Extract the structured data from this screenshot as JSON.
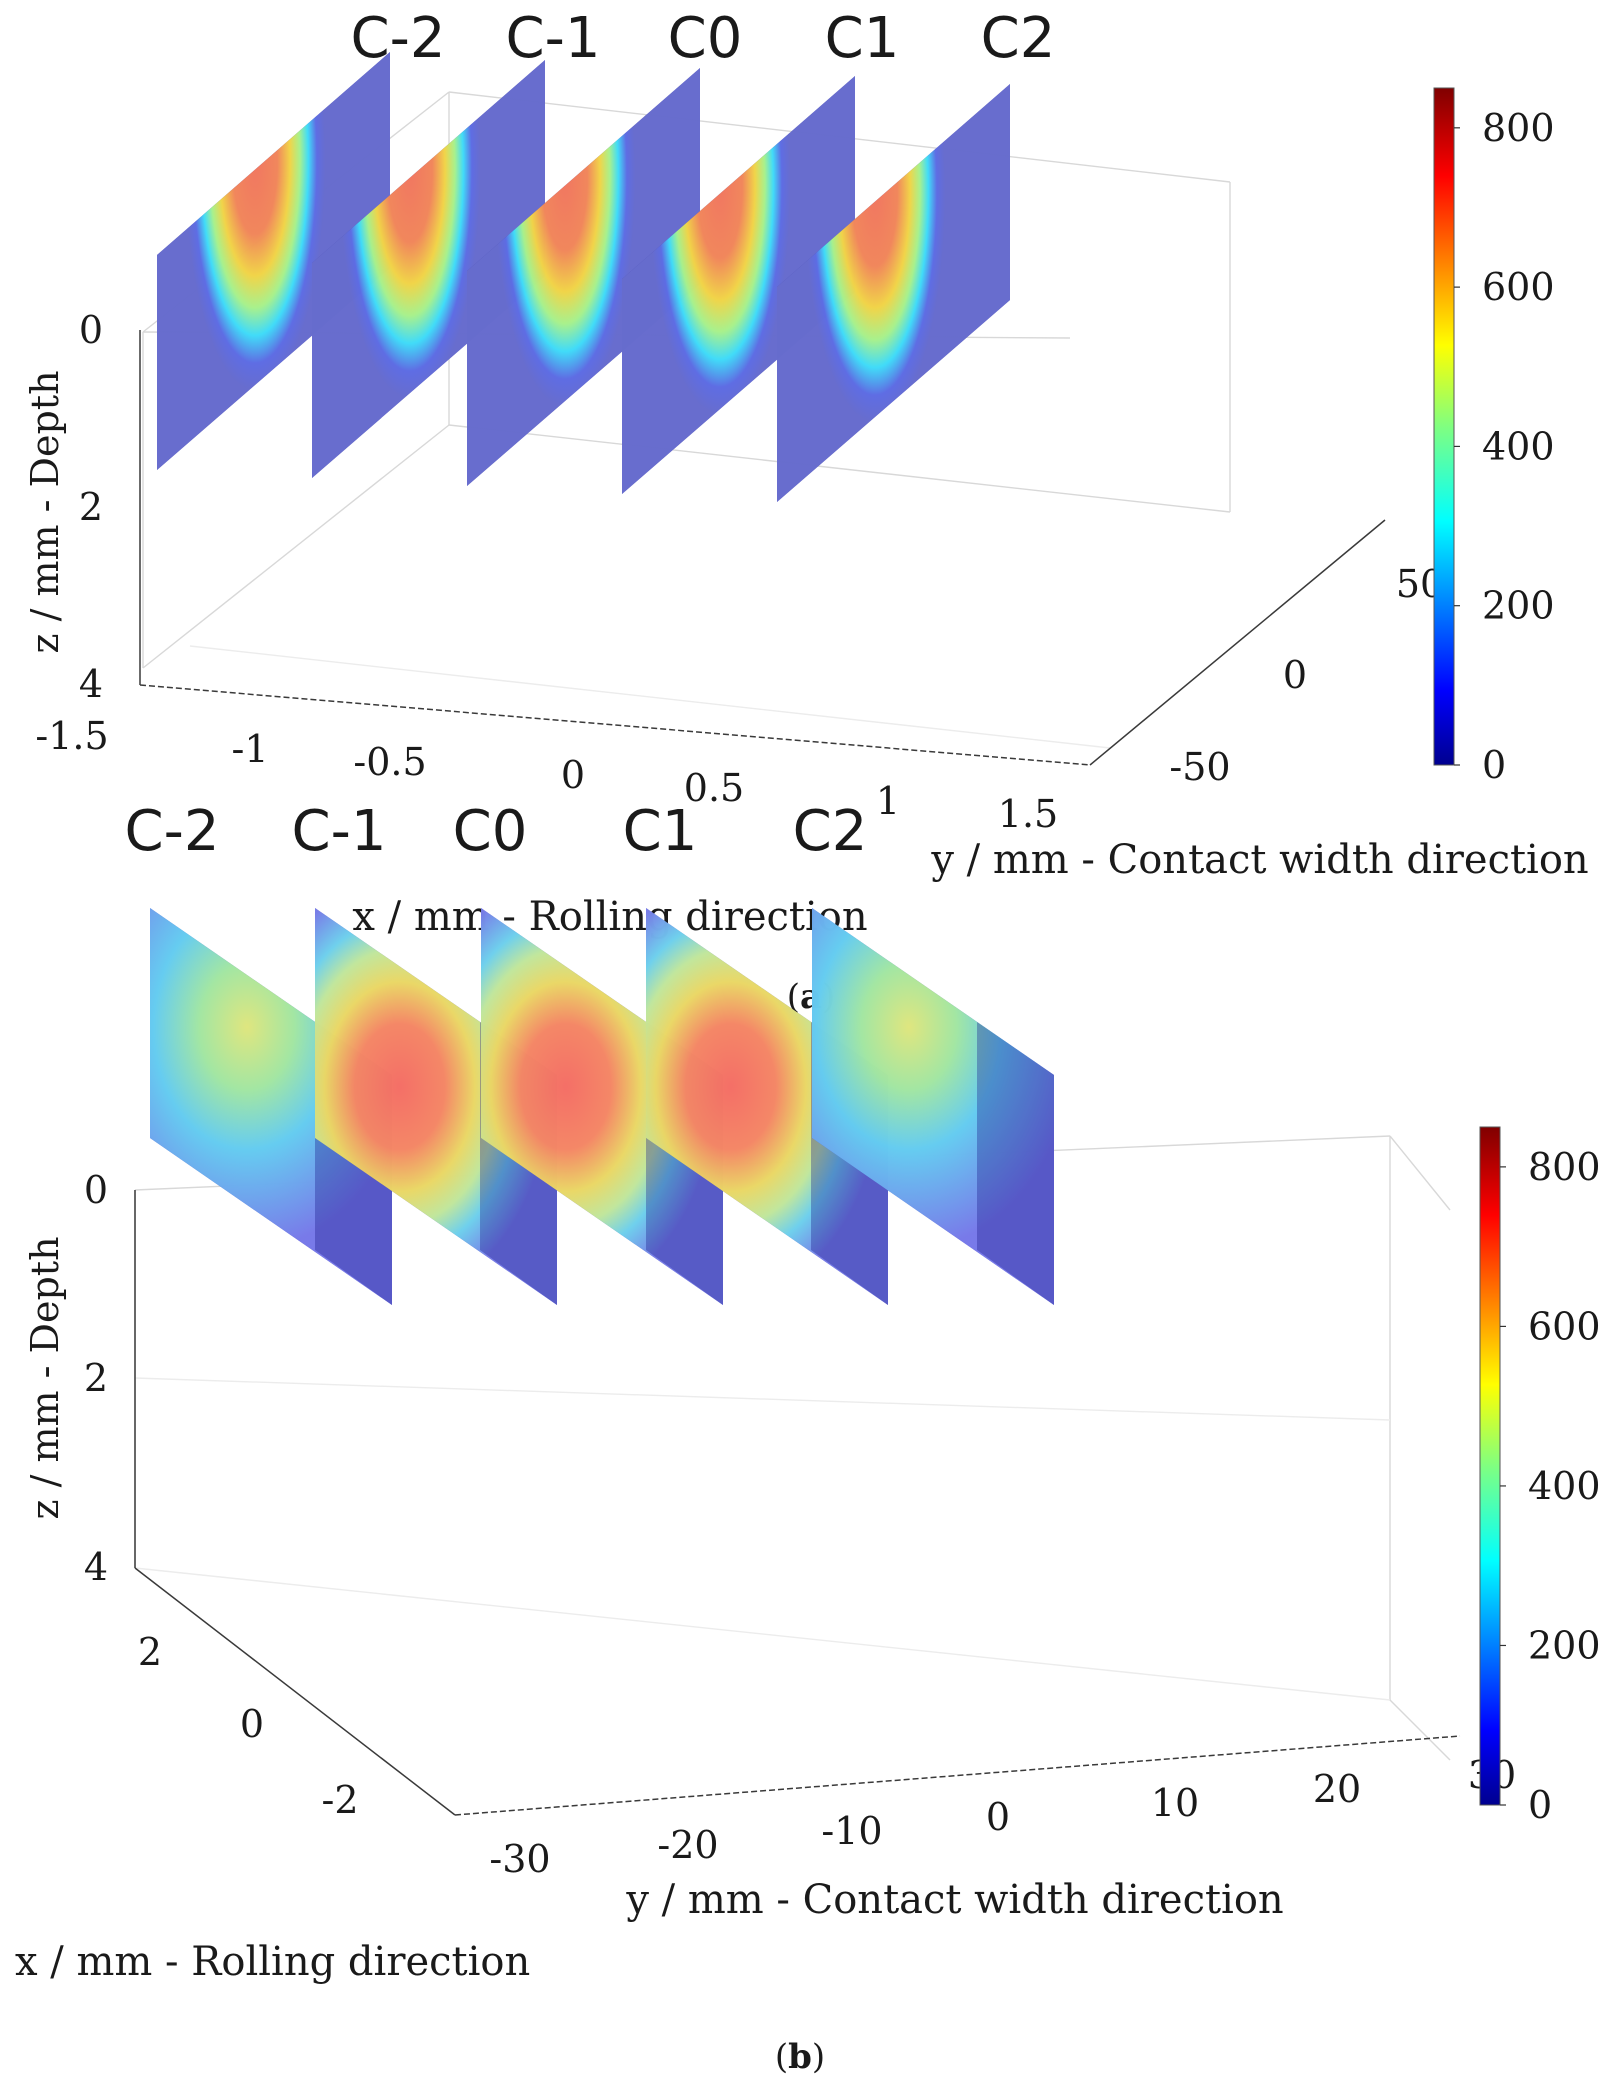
{
  "chart_data": [
    {
      "type": "heatmap",
      "panel_label": "a",
      "xlabel": "x / mm - Rolling direction",
      "ylabel": "y / mm - Contact width direction",
      "zlabel": "z / mm - Depth",
      "x_ticks": [
        "-1.5",
        "-1",
        "-0.5",
        "0",
        "0.5",
        "1",
        "1.5"
      ],
      "y_ticks": [
        "-50",
        "0",
        "50"
      ],
      "z_ticks": [
        "0",
        "2",
        "4"
      ],
      "slices": [
        "C-2",
        "C-1",
        "C0",
        "C1",
        "C2"
      ],
      "slice_orientation": "x-z planes at constant y",
      "peak_values": [
        650,
        660,
        670,
        660,
        650
      ],
      "colorbar": {
        "min": 0,
        "max": 850,
        "ticks": [
          "0",
          "200",
          "400",
          "600",
          "800"
        ],
        "colormap": "jet"
      }
    },
    {
      "type": "heatmap",
      "panel_label": "b",
      "xlabel": "x / mm - Rolling direction",
      "ylabel": "y / mm - Contact width direction",
      "zlabel": "z / mm - Depth",
      "x_ticks": [
        "-2",
        "0",
        "2"
      ],
      "y_ticks": [
        "-30",
        "-20",
        "-10",
        "0",
        "10",
        "20",
        "30"
      ],
      "z_ticks": [
        "0",
        "2",
        "4"
      ],
      "slices": [
        "C-2",
        "C-1",
        "C0",
        "C1",
        "C2"
      ],
      "slice_orientation": "y-z planes at constant x",
      "peak_values": [
        480,
        650,
        680,
        650,
        480
      ],
      "colorbar": {
        "min": 0,
        "max": 850,
        "ticks": [
          "0",
          "200",
          "400",
          "600",
          "800"
        ],
        "colormap": "jet"
      }
    }
  ]
}
